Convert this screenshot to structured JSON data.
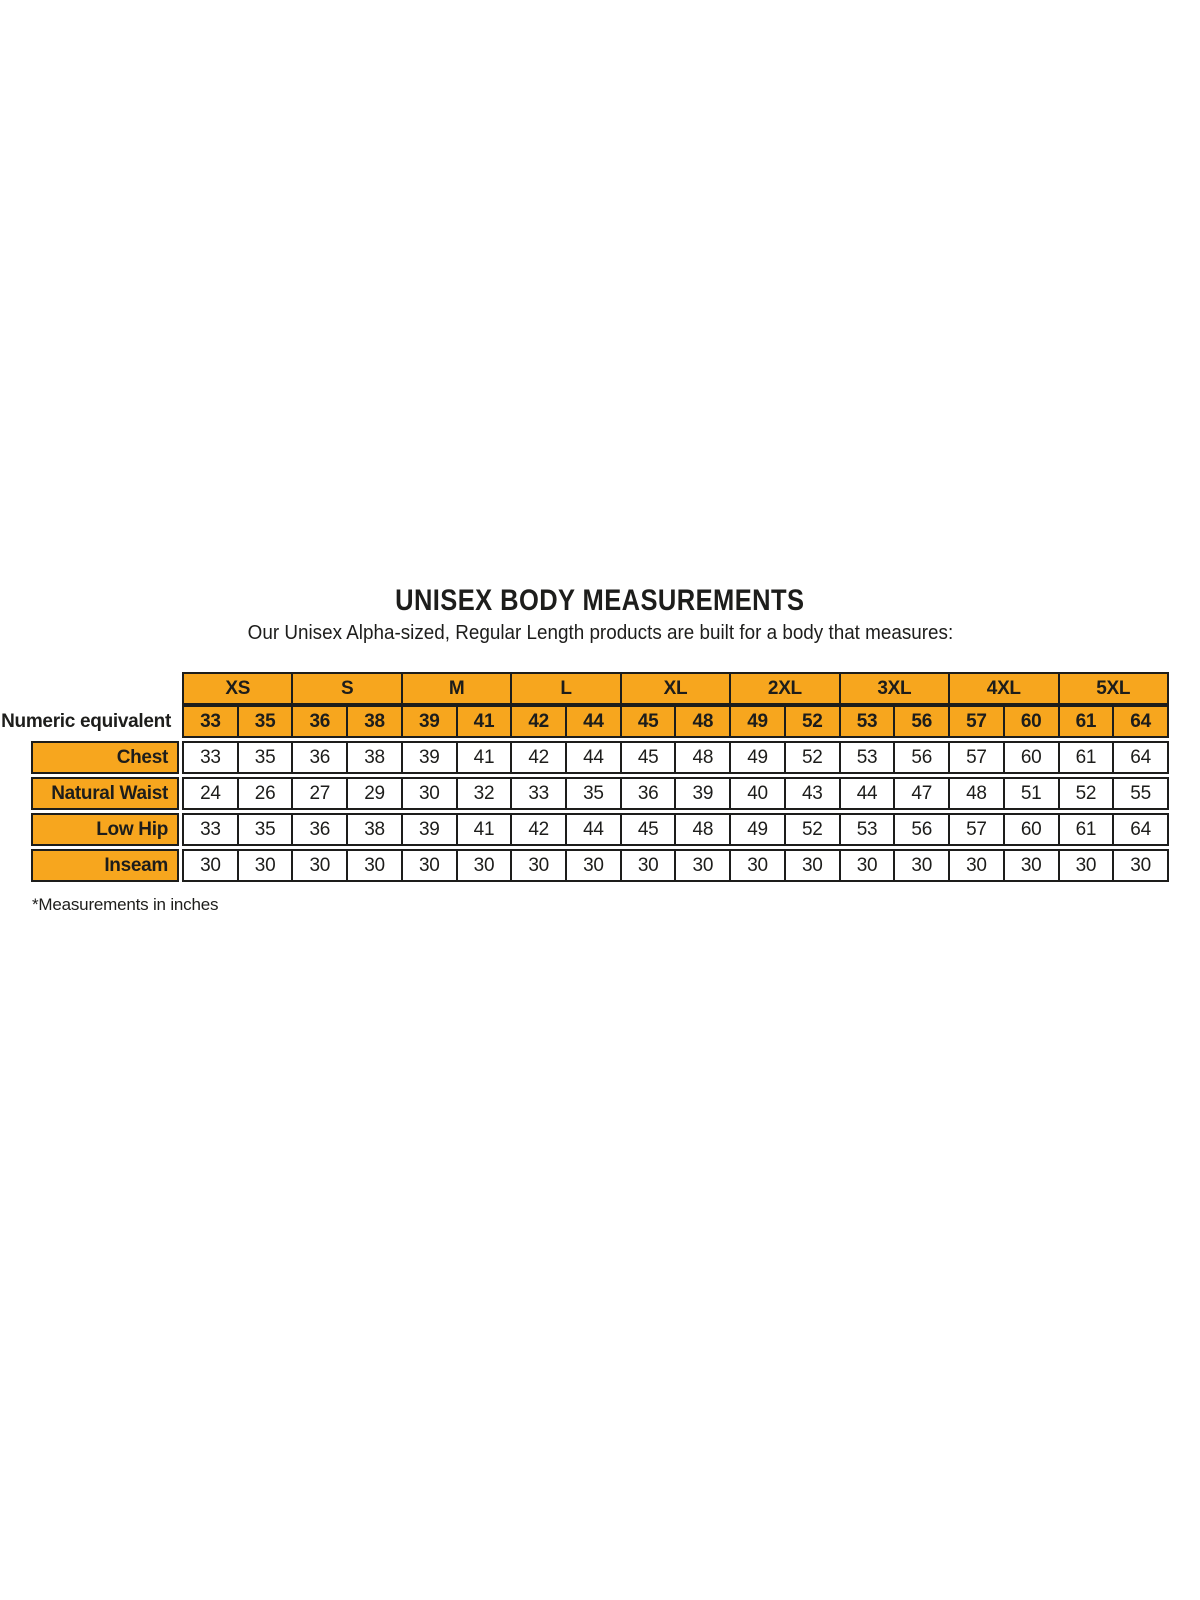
{
  "page": {
    "title": "UNISEX BODY MEASUREMENTS",
    "subtitle": "Our Unisex Alpha-sized, Regular Length products are built for a body that measures:",
    "footnote": "*Measurements in inches"
  },
  "colors": {
    "accent_orange": "#F7A61E",
    "border_black": "#1D1D1B",
    "background": "#FFFFFF"
  },
  "size_table": {
    "corner_label": "Numeric equivalent",
    "sizes": [
      "XS",
      "S",
      "M",
      "L",
      "XL",
      "2XL",
      "3XL",
      "4XL",
      "5XL"
    ],
    "numeric_equivalents": [
      "33",
      "35",
      "36",
      "38",
      "39",
      "41",
      "42",
      "44",
      "45",
      "48",
      "49",
      "52",
      "53",
      "56",
      "57",
      "60",
      "61",
      "64"
    ],
    "rows": [
      {
        "label": "Chest",
        "values": [
          "33",
          "35",
          "36",
          "38",
          "39",
          "41",
          "42",
          "44",
          "45",
          "48",
          "49",
          "52",
          "53",
          "56",
          "57",
          "60",
          "61",
          "64"
        ]
      },
      {
        "label": "Natural Waist",
        "values": [
          "24",
          "26",
          "27",
          "29",
          "30",
          "32",
          "33",
          "35",
          "36",
          "39",
          "40",
          "43",
          "44",
          "47",
          "48",
          "51",
          "52",
          "55"
        ]
      },
      {
        "label": "Low Hip",
        "values": [
          "33",
          "35",
          "36",
          "38",
          "39",
          "41",
          "42",
          "44",
          "45",
          "48",
          "49",
          "52",
          "53",
          "56",
          "57",
          "60",
          "61",
          "64"
        ]
      },
      {
        "label": "Inseam",
        "values": [
          "30",
          "30",
          "30",
          "30",
          "30",
          "30",
          "30",
          "30",
          "30",
          "30",
          "30",
          "30",
          "30",
          "30",
          "30",
          "30",
          "30",
          "30"
        ]
      }
    ]
  }
}
